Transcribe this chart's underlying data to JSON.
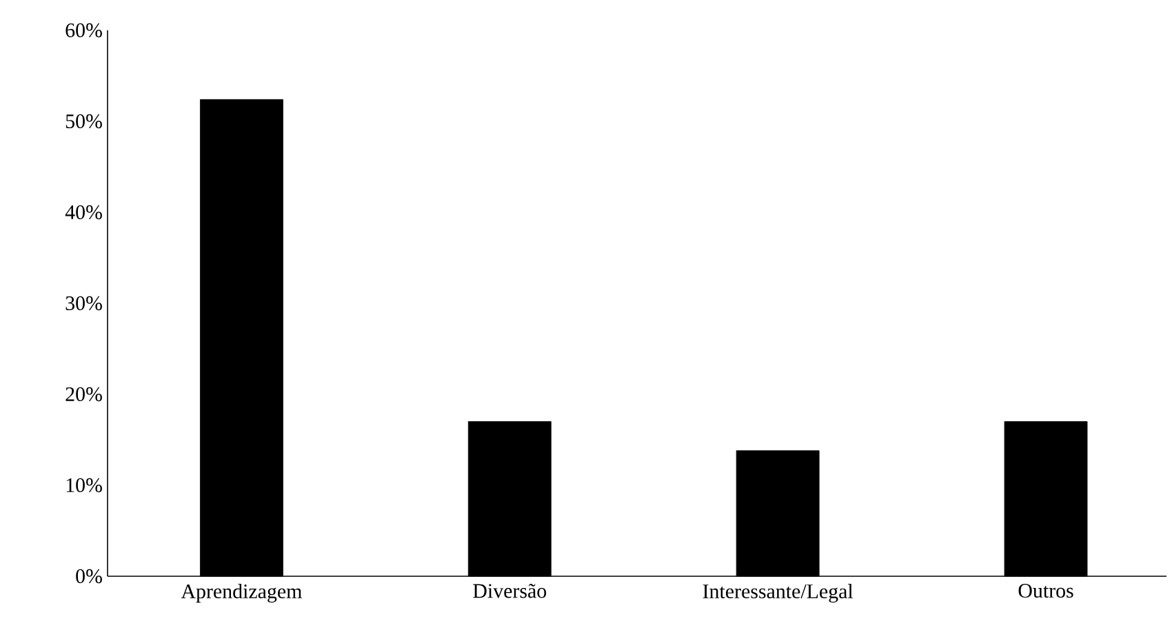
{
  "chart_data": {
    "type": "bar",
    "categories": [
      "Aprendizagem",
      "Diversão",
      "Interessante/Legal",
      "Outros"
    ],
    "values": [
      52.4,
      17,
      13.8,
      17
    ],
    "color": "#000000",
    "ylim": [
      0,
      60
    ],
    "yticks": [
      {
        "value": 0,
        "label": "0%"
      },
      {
        "value": 10,
        "label": "10%"
      },
      {
        "value": 20,
        "label": "20%"
      },
      {
        "value": 30,
        "label": "30%"
      },
      {
        "value": 40,
        "label": "40%"
      },
      {
        "value": 50,
        "label": "50%"
      },
      {
        "value": 60,
        "label": "60%"
      }
    ],
    "grid": false
  }
}
